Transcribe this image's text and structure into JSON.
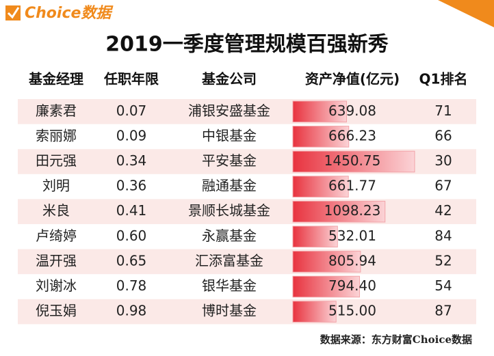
{
  "header": {
    "logo": "Choice数据",
    "title": "2019一季度管理规模百强新秀"
  },
  "table": {
    "columns": [
      "基金经理",
      "任职年限",
      "基金公司",
      "资产净值(亿元)",
      "Q1排名"
    ],
    "rows": [
      [
        "廉素君",
        "0.07",
        "浦银安盛基金",
        "639.08",
        "71"
      ],
      [
        "索丽娜",
        "0.09",
        "中银基金",
        "666.23",
        "66"
      ],
      [
        "田元强",
        "0.34",
        "平安基金",
        "1450.75",
        "30"
      ],
      [
        "刘明",
        "0.36",
        "融通基金",
        "661.77",
        "67"
      ],
      [
        "米良",
        "0.41",
        "景顺长城基金",
        "1098.23",
        "42"
      ],
      [
        "卢绮婷",
        "0.60",
        "永赢基金",
        "532.01",
        "84"
      ],
      [
        "温开强",
        "0.65",
        "汇添富基金",
        "805.94",
        "52"
      ],
      [
        "刘谢冰",
        "0.78",
        "银华基金",
        "794.40",
        "54"
      ],
      [
        "倪玉娟",
        "0.98",
        "博时基金",
        "515.00",
        "87"
      ]
    ]
  },
  "footer": {
    "source": "数据来源：东方财富Choice数据"
  }
}
